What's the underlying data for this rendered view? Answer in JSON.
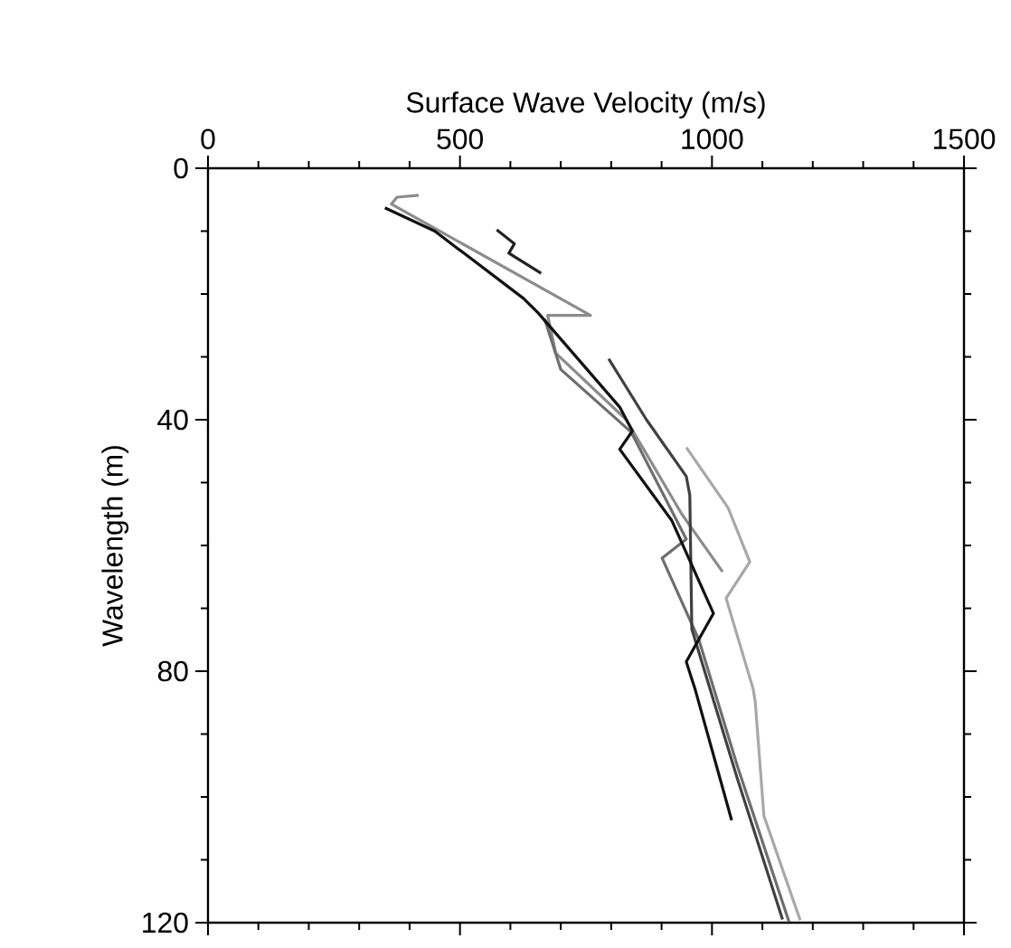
{
  "chart_data": {
    "type": "line",
    "xlabel": "Surface Wave Velocity (m/s)",
    "ylabel": "Wavelength (m)",
    "xlim": [
      0,
      1500
    ],
    "xticks": [
      0,
      500,
      1000,
      1500
    ],
    "ylim": [
      120,
      0
    ],
    "yticks": [
      0,
      40,
      80,
      120
    ],
    "marker": "none",
    "line_style": "solid",
    "series": [
      {
        "color": "#8c8c8c",
        "x": [
          418,
          375,
          364,
          759,
          674,
          690,
          830,
          940,
          1021
        ],
        "values": [
          4.3,
          4.6,
          5.7,
          23.4,
          23.4,
          29.4,
          40,
          55,
          64.2
        ]
      },
      {
        "color": "#6e6e6e",
        "x": [
          668,
          700,
          840,
          949,
          901,
          974,
          1050,
          1153
        ],
        "values": [
          24,
          32,
          42,
          59,
          62,
          75,
          95,
          119.9
        ]
      },
      {
        "color": "#404040",
        "x": [
          795,
          870,
          949,
          956,
          960,
          1050,
          1140
        ],
        "values": [
          30.3,
          40,
          49,
          52,
          73.3,
          97,
          119.5
        ]
      },
      {
        "color": "#a8a8a8",
        "x": [
          949,
          1032,
          1075,
          1028,
          1082,
          1086,
          1103,
          1175
        ],
        "values": [
          44.4,
          54,
          62.6,
          68.4,
          82.9,
          85,
          103,
          119.6
        ]
      },
      {
        "color": "#111111",
        "x": [
          351,
          450,
          626,
          655,
          817,
          842,
          817,
          920,
          1003,
          949,
          967,
          1039
        ],
        "values": [
          6.3,
          10,
          20.7,
          23,
          38,
          41.8,
          44.7,
          56,
          70.8,
          78.5,
          83,
          103.7
        ]
      },
      {
        "color": "#222222",
        "x": [
          573,
          608,
          597,
          661
        ],
        "values": [
          9.8,
          12,
          13.5,
          16.7
        ]
      }
    ]
  }
}
